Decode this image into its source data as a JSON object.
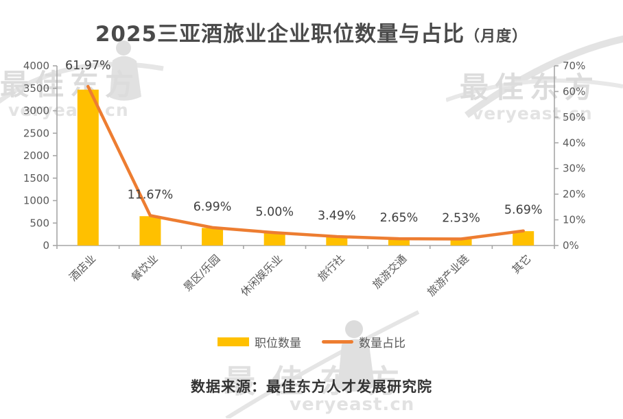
{
  "page": {
    "title_main": "2025三亚酒旅业企业职位数量与占比",
    "title_suffix": "（月度）",
    "source_note": "数据来源：最佳东方人才发展研究院"
  },
  "watermark": {
    "brand": "最佳东方",
    "domain": "veryeast.cn"
  },
  "colors": {
    "bar": "#FFC000",
    "line": "#ED7D31",
    "axis": "#a6a6a6",
    "axis_label": "#595959",
    "data_label": "#404040",
    "title_text": "#4a4a4a",
    "watermark_gray": "#dcdcdc"
  },
  "chart_data": {
    "type": "bar",
    "combo": "bar+line",
    "title": "2025三亚酒旅业企业职位数量与占比（月度）",
    "categories": [
      "酒店业",
      "餐饮业",
      "景区/乐园",
      "休闲娱乐业",
      "旅行社",
      "旅游交通",
      "旅游产业链",
      "其它"
    ],
    "series": [
      {
        "name": "职位数量",
        "type": "bar",
        "axis": "left",
        "color": "#FFC000",
        "values": [
          3470,
          653,
          391,
          280,
          195,
          148,
          142,
          319
        ]
      },
      {
        "name": "数量占比",
        "type": "line",
        "axis": "right",
        "color": "#ED7D31",
        "values": [
          61.97,
          11.67,
          6.99,
          5.0,
          3.49,
          2.65,
          2.53,
          5.69
        ],
        "labels": [
          "61.97%",
          "11.67%",
          "6.99%",
          "5.00%",
          "3.49%",
          "2.65%",
          "2.53%",
          "5.69%"
        ]
      }
    ],
    "left_axis": {
      "min": 0,
      "max": 4000,
      "step": 500,
      "tick_labels": [
        "0",
        "500",
        "1000",
        "1500",
        "2000",
        "2500",
        "3000",
        "3500",
        "4000"
      ]
    },
    "right_axis": {
      "min": 0,
      "max": 70,
      "step": 10,
      "tick_labels": [
        "0%",
        "10%",
        "20%",
        "30%",
        "40%",
        "50%",
        "60%",
        "70%"
      ]
    },
    "legend_position": "bottom",
    "grid": "off"
  }
}
